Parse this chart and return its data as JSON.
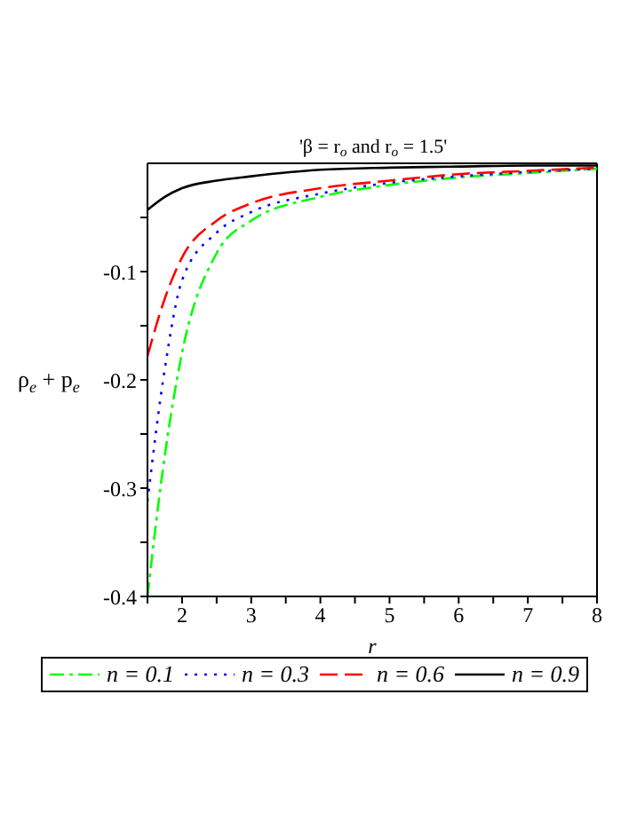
{
  "chart_data": {
    "type": "line",
    "title": "'β = r$_{o}$ and r$_{o}$ = 1.5'",
    "xlabel": "r",
    "ylabel": "ρ$_{e}$ + p$_{e}$",
    "xlim": [
      1.5,
      8
    ],
    "xticks": [
      {
        "value": 1.5,
        "label": null
      },
      2,
      {
        "value": 2.5,
        "label": null
      },
      3,
      {
        "value": 3.5,
        "label": null
      },
      4,
      {
        "value": 4.5,
        "label": null
      },
      5,
      {
        "value": 5.5,
        "label": null
      },
      6,
      {
        "value": 6.5,
        "label": null
      },
      7,
      {
        "value": 7.5,
        "label": null
      },
      8
    ],
    "ylim": [
      -0.4,
      0
    ],
    "yticks": [
      -0.4,
      {
        "value": -0.35,
        "label": null
      },
      -0.3,
      {
        "value": -0.25,
        "label": null
      },
      -0.2,
      {
        "value": -0.15,
        "label": null
      },
      -0.1,
      {
        "value": -0.05,
        "label": null
      }
    ],
    "x": [
      1.5,
      1.75,
      2,
      2.5,
      3,
      4,
      5,
      6,
      7,
      8
    ],
    "series": [
      {
        "name": "n = 0.1",
        "color": "#00ff00",
        "line_style": "dashdot",
        "values": [
          -0.4,
          -0.27,
          -0.175,
          -0.083,
          -0.053,
          -0.031,
          -0.02,
          -0.013,
          -0.009,
          -0.005
        ]
      },
      {
        "name": "n = 0.3",
        "color": "#0000ff",
        "line_style": "dotted",
        "values": [
          -0.312,
          -0.19,
          -0.108,
          -0.064,
          -0.045,
          -0.028,
          -0.018,
          -0.012,
          -0.008,
          -0.005
        ]
      },
      {
        "name": "n = 0.6",
        "color": "#ff0000",
        "line_style": "dashed",
        "values": [
          -0.178,
          -0.125,
          -0.087,
          -0.053,
          -0.037,
          -0.023,
          -0.016,
          -0.01,
          -0.007,
          -0.004
        ]
      },
      {
        "name": "n = 0.9",
        "color": "#000000",
        "line_style": "solid",
        "values": [
          -0.043,
          -0.031,
          -0.023,
          -0.016,
          -0.012,
          -0.006,
          -0.004,
          -0.003,
          -0.002,
          -0.002
        ]
      }
    ],
    "legend": "bottom"
  }
}
